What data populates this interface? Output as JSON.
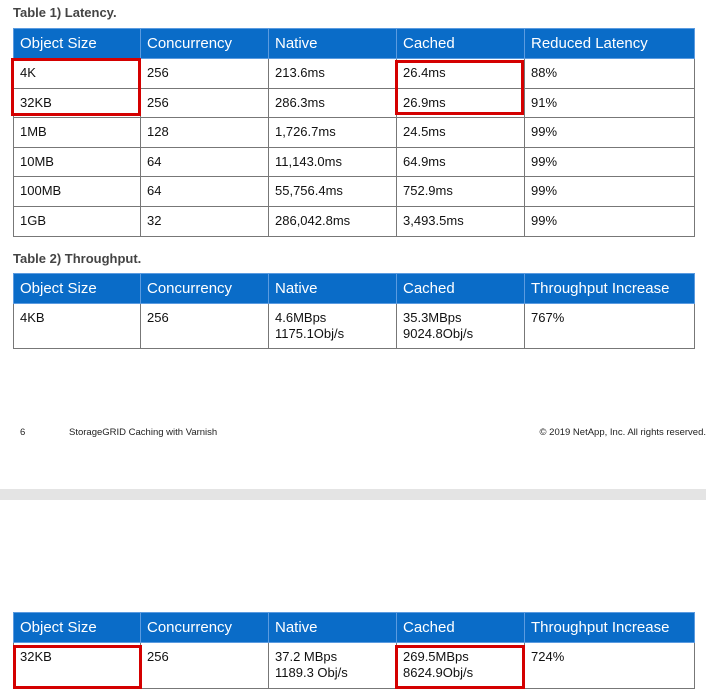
{
  "table1": {
    "title": "Table 1) Latency.",
    "header": [
      "Object Size",
      "Concurrency",
      "Native",
      "Cached",
      "Reduced Latency"
    ],
    "rows": [
      [
        "4K",
        "256",
        "213.6ms",
        "26.4ms",
        "88%"
      ],
      [
        "32KB",
        "256",
        "286.3ms",
        "26.9ms",
        "91%"
      ],
      [
        "1MB",
        "128",
        "1,726.7ms",
        "24.5ms",
        "99%"
      ],
      [
        "10MB",
        "64",
        "11,143.0ms",
        "64.9ms",
        "99%"
      ],
      [
        "100MB",
        "64",
        "55,756.4ms",
        "752.9ms",
        "99%"
      ],
      [
        "1GB",
        "32",
        "286,042.8ms",
        "3,493.5ms",
        "99%"
      ]
    ]
  },
  "table2": {
    "title": "Table 2) Throughput.",
    "header": [
      "Object Size",
      "Concurrency",
      "Native",
      "Cached",
      "Throughput Increase"
    ],
    "rows": [
      [
        "4KB",
        "256",
        [
          "4.6MBps",
          "1175.1Obj/s"
        ],
        [
          "35.3MBps",
          "9024.8Obj/s"
        ],
        "767%"
      ]
    ]
  },
  "footer": {
    "page": "6",
    "doc_title": "StorageGRID Caching with Varnish",
    "copyright": "© 2019 NetApp, Inc. All rights reserved."
  },
  "table3": {
    "header": [
      "Object Size",
      "Concurrency",
      "Native",
      "Cached",
      "Throughput Increase"
    ],
    "rows": [
      [
        "32KB",
        "256",
        [
          "37.2 MBps",
          "1189.3 Obj/s"
        ],
        [
          "269.5MBps",
          "8624.9Obj/s"
        ],
        "724%"
      ]
    ]
  }
}
